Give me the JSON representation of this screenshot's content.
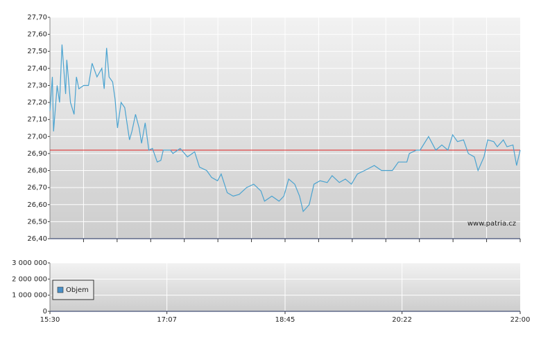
{
  "chart_data": [
    {
      "type": "line",
      "x": [
        "15:30",
        "15:32",
        "15:33",
        "15:36",
        "15:38",
        "15:40",
        "15:43",
        "15:44",
        "15:47",
        "15:50",
        "15:52",
        "15:54",
        "15:58",
        "16:02",
        "16:05",
        "16:09",
        "16:13",
        "16:15",
        "16:17",
        "16:19",
        "16:22",
        "16:24",
        "16:26",
        "16:29",
        "16:32",
        "16:36",
        "16:38",
        "16:41",
        "16:44",
        "16:46",
        "16:49",
        "16:52",
        "16:55",
        "16:59",
        "17:02",
        "17:04",
        "17:10",
        "17:12",
        "17:18",
        "17:24",
        "17:30",
        "17:34",
        "17:40",
        "17:44",
        "17:49",
        "17:52",
        "17:57",
        "18:02",
        "18:07",
        "18:13",
        "18:19",
        "18:25",
        "18:28",
        "18:34",
        "18:40",
        "18:44",
        "18:48",
        "18:53",
        "18:57",
        "19:00",
        "19:05",
        "19:09",
        "19:14",
        "19:20",
        "19:24",
        "19:30",
        "19:35",
        "19:40",
        "19:45",
        "19:51",
        "19:59",
        "20:05",
        "20:14",
        "20:19",
        "20:26",
        "20:28",
        "20:34",
        "20:37",
        "20:44",
        "20:50",
        "20:55",
        "21:00",
        "21:04",
        "21:08",
        "21:13",
        "21:17",
        "21:22",
        "21:25",
        "21:30",
        "21:33",
        "21:38",
        "21:41",
        "21:46",
        "21:49",
        "21:54",
        "21:57",
        "22:00"
      ],
      "series": [
        {
          "color": "#4aa3d0",
          "values": [
            27.15,
            27.35,
            27.03,
            27.3,
            27.2,
            27.54,
            27.25,
            27.45,
            27.2,
            27.13,
            27.35,
            27.28,
            27.3,
            27.3,
            27.43,
            27.35,
            27.4,
            27.28,
            27.52,
            27.35,
            27.32,
            27.22,
            27.05,
            27.2,
            27.17,
            26.98,
            27.03,
            27.13,
            27.05,
            26.96,
            27.08,
            26.92,
            26.93,
            26.85,
            26.86,
            26.92,
            26.92,
            26.9,
            26.93,
            26.88,
            26.91,
            26.82,
            26.8,
            26.76,
            26.74,
            26.78,
            26.67,
            26.65,
            26.66,
            26.7,
            26.72,
            26.68,
            26.62,
            26.65,
            26.62,
            26.65,
            26.75,
            26.72,
            26.65,
            26.56,
            26.6,
            26.72,
            26.74,
            26.73,
            26.77,
            26.73,
            26.75,
            26.72,
            26.78,
            26.8,
            26.83,
            26.8,
            26.8,
            26.85,
            26.85,
            26.9,
            26.92,
            26.92,
            27.0,
            26.92,
            26.95,
            26.92,
            27.01,
            26.97,
            26.98,
            26.9,
            26.88,
            26.8,
            26.88,
            26.98,
            26.97,
            26.94,
            26.98,
            26.94,
            26.95,
            26.83,
            26.92
          ]
        }
      ],
      "reference_line": 26.92,
      "reference_color": "#e02020",
      "xlim": [
        "15:30",
        "22:00"
      ],
      "ylim": [
        26.4,
        27.7
      ],
      "yticks": [
        {
          "value": 26.4,
          "label": "26,40"
        },
        {
          "value": 26.5,
          "label": "26,50"
        },
        {
          "value": 26.6,
          "label": "26,60"
        },
        {
          "value": 26.7,
          "label": "26,70"
        },
        {
          "value": 26.8,
          "label": "26,80"
        },
        {
          "value": 26.9,
          "label": "26,90"
        },
        {
          "value": 27.0,
          "label": "27,00"
        },
        {
          "value": 27.1,
          "label": "27,10"
        },
        {
          "value": 27.2,
          "label": "27,20"
        },
        {
          "value": 27.3,
          "label": "27,30"
        },
        {
          "value": 27.4,
          "label": "27,40"
        },
        {
          "value": 27.5,
          "label": "27,50"
        },
        {
          "value": 27.6,
          "label": "27,60"
        },
        {
          "value": 27.7,
          "label": "27,70"
        }
      ],
      "annotation": "www.patria.cz",
      "grid": true
    },
    {
      "type": "bar",
      "legend": "Objem",
      "color": "#4a90c8",
      "xlim": [
        "15:30",
        "22:00"
      ],
      "xticks": [
        "15:30",
        "17:07",
        "18:45",
        "20:22",
        "22:00"
      ],
      "ylim": [
        0,
        3000000
      ],
      "yticks": [
        0,
        {
          "value": 1000000,
          "label": "1 000 000"
        },
        {
          "value": 2000000,
          "label": "2 000 000"
        },
        {
          "value": 3000000,
          "label": "3 000 000"
        }
      ],
      "grid": true
    }
  ]
}
